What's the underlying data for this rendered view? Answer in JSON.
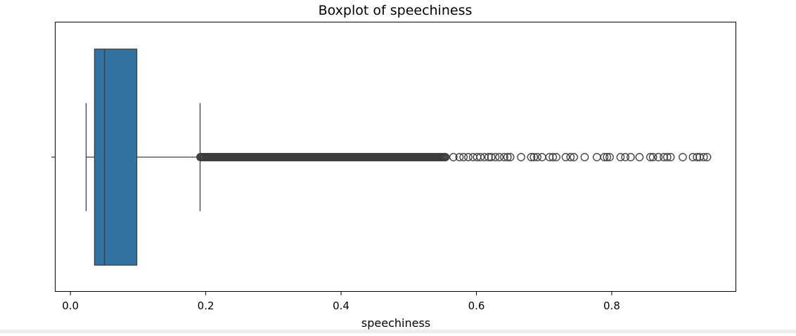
{
  "chart_data": {
    "type": "box",
    "title": "Boxplot of speechiness",
    "xlabel": "speechiness",
    "ylabel": "",
    "xlim": [
      -0.022,
      0.984
    ],
    "x_ticks": [
      0.0,
      0.2,
      0.4,
      0.6,
      0.8
    ],
    "x_tick_labels": [
      "0.0",
      "0.2",
      "0.4",
      "0.6",
      "0.8"
    ],
    "orientation": "horizontal",
    "grid": false,
    "box": {
      "whisker_low": 0.0232,
      "q1": 0.0356,
      "median": 0.0504,
      "q3": 0.0981,
      "whisker_high": 0.1916
    },
    "outliers_dense_range": [
      0.192,
      0.555
    ],
    "outliers": [
      0.566,
      0.575,
      0.581,
      0.588,
      0.595,
      0.601,
      0.606,
      0.612,
      0.618,
      0.622,
      0.628,
      0.634,
      0.641,
      0.646,
      0.65,
      0.666,
      0.681,
      0.685,
      0.69,
      0.697,
      0.708,
      0.713,
      0.718,
      0.732,
      0.739,
      0.744,
      0.76,
      0.778,
      0.789,
      0.793,
      0.797,
      0.813,
      0.82,
      0.828,
      0.841,
      0.857,
      0.861,
      0.869,
      0.877,
      0.882,
      0.887,
      0.905,
      0.92,
      0.926,
      0.93,
      0.936,
      0.941
    ],
    "colors": {
      "box_fill": "#3274a1",
      "line": "#3d3d3d",
      "axis": "#000000",
      "footer": "#eeeeee"
    }
  }
}
